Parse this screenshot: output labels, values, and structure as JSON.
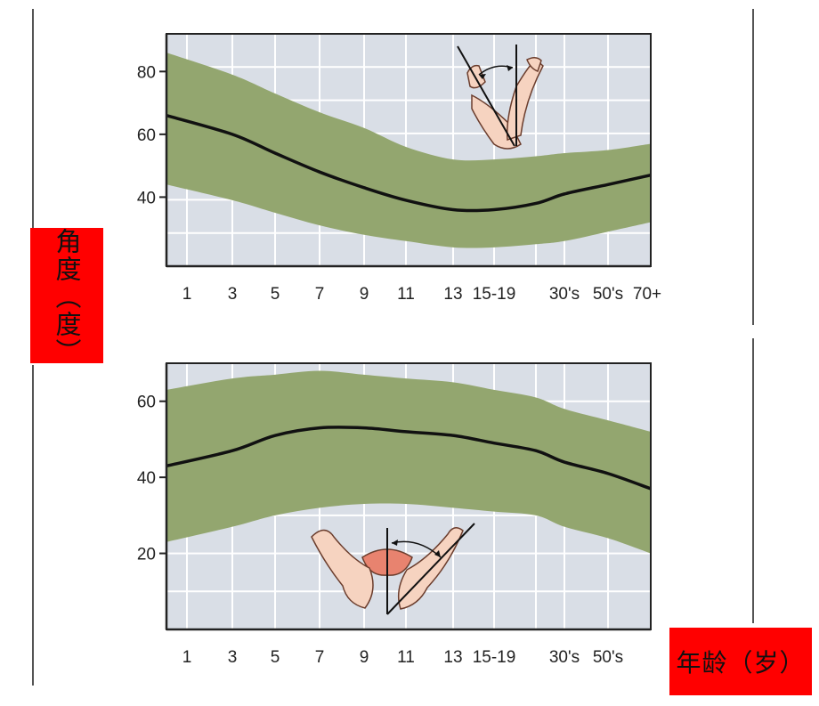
{
  "y_label": "角度（度）",
  "x_label": "年龄（岁）",
  "colors": {
    "band": "#93a66f",
    "plot_bg": "#d9dee6",
    "grid": "#ffffff",
    "line": "#111111",
    "label_bg": "#ff0000"
  },
  "icons": [
    "elbow-flexion-diagram-icon",
    "knee-angle-diagram-icon"
  ],
  "chart_data": [
    {
      "type": "area",
      "categories": [
        "1",
        "3",
        "5",
        "7",
        "9",
        "11",
        "13",
        "15-19",
        "",
        "30's",
        "50's",
        "70+"
      ],
      "yticks": [
        40,
        60,
        80
      ],
      "ylim": [
        18,
        92
      ],
      "grid": true,
      "series": [
        {
          "role": "mean",
          "values": [
            66,
            60,
            54,
            48,
            43,
            39,
            36,
            36,
            38,
            41,
            44,
            47
          ]
        },
        {
          "role": "upper",
          "values": [
            86,
            79,
            73,
            67,
            62,
            56,
            52,
            52,
            53,
            54,
            55,
            57
          ]
        },
        {
          "role": "lower",
          "values": [
            44,
            39,
            35,
            31,
            28,
            26,
            24,
            24,
            25,
            26,
            29,
            32
          ]
        }
      ]
    },
    {
      "type": "area",
      "categories": [
        "1",
        "3",
        "5",
        "7",
        "9",
        "11",
        "13",
        "15-19",
        "",
        "30's",
        "50's",
        ""
      ],
      "yticks": [
        20,
        40,
        60
      ],
      "ylim": [
        0,
        70
      ],
      "grid": true,
      "series": [
        {
          "role": "mean",
          "values": [
            43,
            47,
            51,
            53,
            53,
            52,
            51,
            49,
            47,
            44,
            41,
            37
          ]
        },
        {
          "role": "upper",
          "values": [
            63,
            66,
            67,
            68,
            67,
            66,
            65,
            63,
            61,
            58,
            55,
            52
          ]
        },
        {
          "role": "lower",
          "values": [
            23,
            27,
            30,
            32,
            33,
            33,
            32,
            31,
            30,
            27,
            24,
            20
          ]
        }
      ]
    }
  ]
}
